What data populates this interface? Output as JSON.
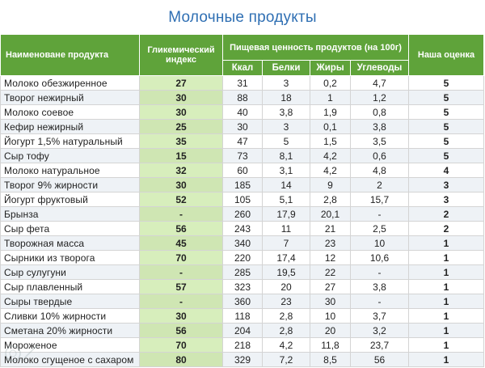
{
  "title": "Молочные продукты",
  "table": {
    "headers": {
      "name": "Наименоване продукта",
      "gi": "Гликемический индекс",
      "nutrition_group": "Пищевая ценность продуктов (на 100г)",
      "kcal": "Ккал",
      "protein": "Белки",
      "fat": "Жиры",
      "carbs": "Углеводы",
      "rating": "Наша оценка"
    },
    "rows": [
      {
        "name": "Молоко обезжиренное",
        "gi": "27",
        "kcal": "31",
        "protein": "3",
        "fat": "0,2",
        "carbs": "4,7",
        "rating": "5"
      },
      {
        "name": "Творог нежирный",
        "gi": "30",
        "kcal": "88",
        "protein": "18",
        "fat": "1",
        "carbs": "1,2",
        "rating": "5"
      },
      {
        "name": "Молоко соевое",
        "gi": "30",
        "kcal": "40",
        "protein": "3,8",
        "fat": "1,9",
        "carbs": "0,8",
        "rating": "5"
      },
      {
        "name": "Кефир нежирный",
        "gi": "25",
        "kcal": "30",
        "protein": "3",
        "fat": "0,1",
        "carbs": "3,8",
        "rating": "5"
      },
      {
        "name": "Йогурт 1,5% натуральный",
        "gi": "35",
        "kcal": "47",
        "protein": "5",
        "fat": "1,5",
        "carbs": "3,5",
        "rating": "5"
      },
      {
        "name": "Сыр тофу",
        "gi": "15",
        "kcal": "73",
        "protein": "8,1",
        "fat": "4,2",
        "carbs": "0,6",
        "rating": "5"
      },
      {
        "name": "Молоко натуральное",
        "gi": "32",
        "kcal": "60",
        "protein": "3,1",
        "fat": "4,2",
        "carbs": "4,8",
        "rating": "4"
      },
      {
        "name": "Творог 9% жирности",
        "gi": "30",
        "kcal": "185",
        "protein": "14",
        "fat": "9",
        "carbs": "2",
        "rating": "3"
      },
      {
        "name": "Йогурт фруктовый",
        "gi": "52",
        "kcal": "105",
        "protein": "5,1",
        "fat": "2,8",
        "carbs": "15,7",
        "rating": "3"
      },
      {
        "name": "Брынза",
        "gi": "-",
        "kcal": "260",
        "protein": "17,9",
        "fat": "20,1",
        "carbs": "-",
        "rating": "2"
      },
      {
        "name": "Сыр фета",
        "gi": "56",
        "kcal": "243",
        "protein": "11",
        "fat": "21",
        "carbs": "2,5",
        "rating": "2"
      },
      {
        "name": "Творожная масса",
        "gi": "45",
        "kcal": "340",
        "protein": "7",
        "fat": "23",
        "carbs": "10",
        "rating": "1"
      },
      {
        "name": "Сырники из творога",
        "gi": "70",
        "kcal": "220",
        "protein": "17,4",
        "fat": "12",
        "carbs": "10,6",
        "rating": "1"
      },
      {
        "name": "Сыр сулугуни",
        "gi": "-",
        "kcal": "285",
        "protein": "19,5",
        "fat": "22",
        "carbs": "-",
        "rating": "1"
      },
      {
        "name": "Сыр плавленный",
        "gi": "57",
        "kcal": "323",
        "protein": "20",
        "fat": "27",
        "carbs": "3,8",
        "rating": "1"
      },
      {
        "name": "Сыры твердые",
        "gi": "-",
        "kcal": "360",
        "protein": "23",
        "fat": "30",
        "carbs": "-",
        "rating": "1"
      },
      {
        "name": "Сливки 10% жирности",
        "gi": "30",
        "kcal": "118",
        "protein": "2,8",
        "fat": "10",
        "carbs": "3,7",
        "rating": "1"
      },
      {
        "name": "Сметана 20% жирности",
        "gi": "56",
        "kcal": "204",
        "protein": "2,8",
        "fat": "20",
        "carbs": "3,2",
        "rating": "1"
      },
      {
        "name": "Мороженое",
        "gi": "70",
        "kcal": "218",
        "protein": "4,2",
        "fat": "11,8",
        "carbs": "23,7",
        "rating": "1"
      },
      {
        "name": "Молоко сгущеное с сахаром",
        "gi": "80",
        "kcal": "329",
        "protein": "7,2",
        "fat": "8,5",
        "carbs": "56",
        "rating": "1"
      }
    ]
  },
  "colors": {
    "header_green": "#5fa33a",
    "gi_column": "#d7eebc",
    "title_blue": "#2f6fb3",
    "alt_row": "#eef2f6"
  }
}
